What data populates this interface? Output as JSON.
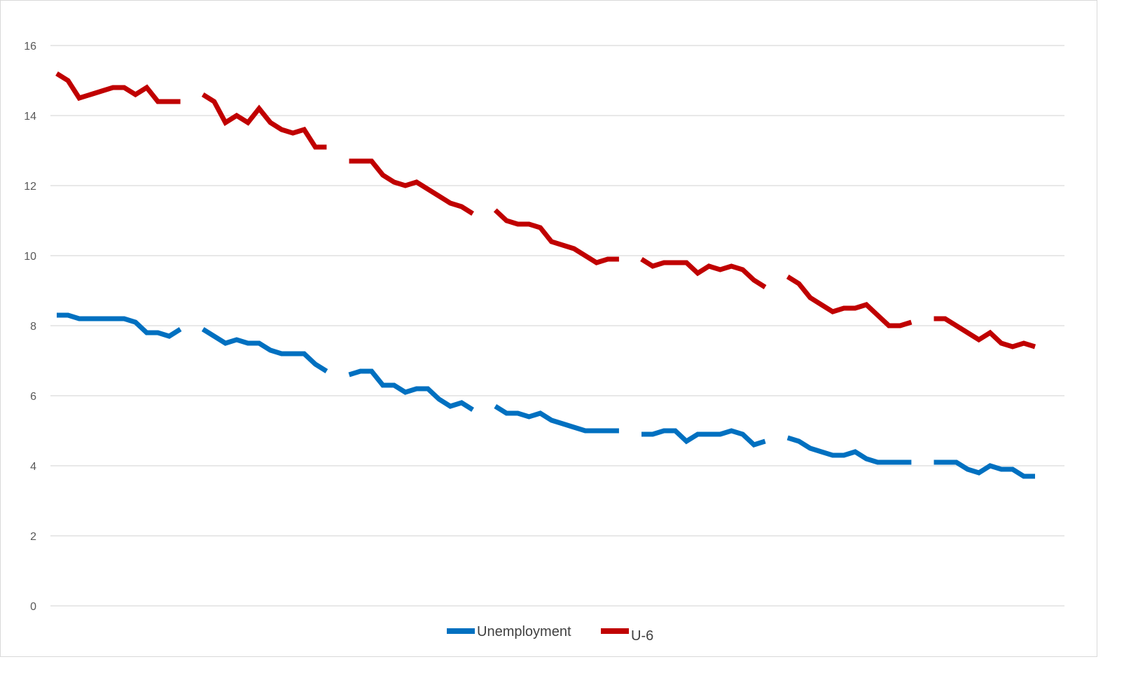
{
  "chart_data": {
    "type": "line",
    "title": "",
    "xlabel": "",
    "ylabel": "",
    "ylim": [
      0,
      16
    ],
    "yticks": [
      0,
      2,
      4,
      6,
      8,
      10,
      12,
      14,
      16
    ],
    "grid": true,
    "legend_position": "bottom",
    "points_per_series": 88,
    "series": [
      {
        "name": "Unemployment",
        "color": "#0070c0",
        "values": [
          8.3,
          8.3,
          8.2,
          8.2,
          8.2,
          8.2,
          8.2,
          8.1,
          7.8,
          7.8,
          7.7,
          7.9,
          null,
          7.9,
          7.7,
          7.5,
          7.6,
          7.5,
          7.5,
          7.3,
          7.2,
          7.2,
          7.2,
          6.9,
          6.7,
          null,
          6.6,
          6.7,
          6.7,
          6.3,
          6.3,
          6.1,
          6.2,
          6.2,
          5.9,
          5.7,
          5.8,
          5.6,
          null,
          5.7,
          5.5,
          5.5,
          5.4,
          5.5,
          5.3,
          5.2,
          5.1,
          5.0,
          5.0,
          5.0,
          5.0,
          null,
          4.9,
          4.9,
          5.0,
          5.0,
          4.7,
          4.9,
          4.9,
          4.9,
          5.0,
          4.9,
          4.6,
          4.7,
          null,
          4.8,
          4.7,
          4.5,
          4.4,
          4.3,
          4.3,
          4.4,
          4.2,
          4.1,
          4.1,
          4.1,
          4.1,
          null,
          4.1,
          4.1,
          4.1,
          3.9,
          3.8,
          4.0,
          3.9,
          3.9,
          3.7,
          3.7
        ]
      },
      {
        "name": "U-6",
        "color": "#c00000",
        "values": [
          15.2,
          15.0,
          14.5,
          14.6,
          14.7,
          14.8,
          14.8,
          14.6,
          14.8,
          14.4,
          14.4,
          14.4,
          null,
          14.6,
          14.4,
          13.8,
          14.0,
          13.8,
          14.2,
          13.8,
          13.6,
          13.5,
          13.6,
          13.1,
          13.1,
          null,
          12.7,
          12.7,
          12.7,
          12.3,
          12.1,
          12.0,
          12.1,
          11.9,
          11.7,
          11.5,
          11.4,
          11.2,
          null,
          11.3,
          11.0,
          10.9,
          10.9,
          10.8,
          10.4,
          10.3,
          10.2,
          10.0,
          9.8,
          9.9,
          9.9,
          null,
          9.9,
          9.7,
          9.8,
          9.8,
          9.8,
          9.5,
          9.7,
          9.6,
          9.7,
          9.6,
          9.3,
          9.1,
          null,
          9.4,
          9.2,
          8.8,
          8.6,
          8.4,
          8.5,
          8.5,
          8.6,
          8.3,
          8.0,
          8.0,
          8.1,
          null,
          8.2,
          8.2,
          8.0,
          7.8,
          7.6,
          7.8,
          7.5,
          7.4,
          7.5,
          7.4
        ]
      }
    ],
    "legend": [
      "Unemployment",
      "U-6"
    ]
  }
}
